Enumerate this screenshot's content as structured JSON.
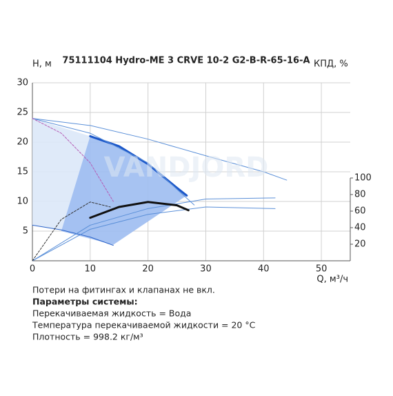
{
  "chart_data": {
    "type": "line",
    "title": "75111104 Hydro-ME 3 CRVE 10-2 G2-B-R-65-16-A",
    "y_label": "H, м",
    "y2_label": "КПД, %",
    "x_label": "Q, м³/ч",
    "watermark": "VANDJORD",
    "xlim": [
      0,
      55
    ],
    "xticks": [
      0,
      10,
      20,
      30,
      40,
      50
    ],
    "ylim": [
      0,
      30
    ],
    "yticks": [
      5,
      10,
      15,
      20,
      25,
      30
    ],
    "y2lim": [
      0,
      215
    ],
    "y2ticks": [
      20,
      40,
      60,
      80,
      100
    ],
    "grid": true,
    "grid_color": "#d0d0d0",
    "curves": [
      {
        "x": [
          0,
          10,
          10,
          0
        ],
        "values": [
          24,
          21,
          4.3,
          6
        ],
        "color": "#dce8f8",
        "fill": true
      },
      {
        "x": [
          10,
          15,
          20,
          25,
          26.7,
          14,
          5
        ],
        "values": [
          21,
          19.3,
          16.3,
          12.3,
          11,
          2.7,
          5
        ],
        "color": "#9dbdf1",
        "fill": true
      },
      {
        "x": [
          10,
          15,
          20,
          25,
          26.7
        ],
        "values": [
          21,
          19.3,
          16.3,
          12.3,
          11
        ],
        "color": "#1a56c9",
        "width": 3
      },
      {
        "x": [
          0,
          10,
          20,
          30,
          40,
          44
        ],
        "values": [
          24,
          22.8,
          20.5,
          17.7,
          15,
          13.6
        ],
        "color": "#5a8fd8",
        "width": 1
      },
      {
        "x": [
          0,
          10,
          20,
          28
        ],
        "values": [
          24,
          21.5,
          16.5,
          9.4
        ],
        "color": "#5a8fd8",
        "width": 1
      },
      {
        "x": [
          0,
          5,
          10,
          14
        ],
        "values": [
          24,
          21.5,
          16.5,
          10
        ],
        "color": "#b45ab4",
        "width": 1,
        "dash": true
      },
      {
        "x": [
          0,
          5,
          10,
          14
        ],
        "values": [
          6,
          5.2,
          4,
          2.6
        ],
        "color": "#2a62c8",
        "width": 1
      },
      {
        "x": [
          0,
          10,
          20,
          30,
          42
        ],
        "values": [
          0,
          6,
          8.8,
          10.4,
          10.6
        ],
        "color": "#5a8fd8",
        "width": 1
      },
      {
        "x": [
          0,
          10,
          20,
          30,
          42
        ],
        "values": [
          0,
          38,
          56,
          65,
          63
        ],
        "color": "#5a8fd8",
        "width": 1,
        "axis": "y2"
      },
      {
        "x": [
          0,
          5,
          10,
          13.5
        ],
        "values": [
          0,
          50,
          71,
          65
        ],
        "color": "#333333",
        "width": 1,
        "dash": true,
        "axis": "y2"
      },
      {
        "x": [
          10,
          15,
          20,
          25,
          27
        ],
        "values": [
          52,
          65,
          71,
          67,
          61
        ],
        "color": "#111111",
        "width": 3,
        "axis": "y2"
      }
    ],
    "notes": [
      "Потери на фитингах и клапанах не вкл.",
      "Параметры системы:",
      "Перекачиваемая жидкость = Вода",
      "Температура перекачиваемой жидкости = 20 °C",
      "Плотность = 998.2 кг/м³"
    ]
  }
}
